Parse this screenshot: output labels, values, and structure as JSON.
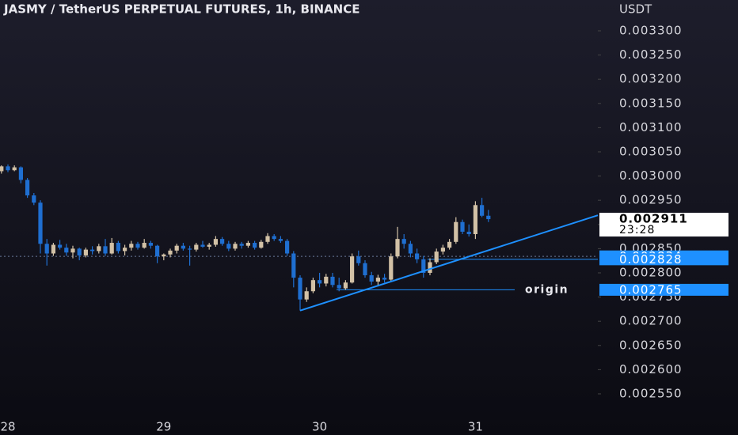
{
  "chart_data": {
    "type": "candlestick",
    "title": "JASMY / TetherUS PERPETUAL FUTURES, 1h, BINANCE",
    "y_axis_label": "USDT",
    "up_color": "#d2c1a6",
    "down_color": "#1f6fd1",
    "categories": [
      null,
      "28",
      null,
      null,
      null,
      null,
      null,
      null,
      null,
      null,
      null,
      null,
      null,
      null,
      null,
      null,
      null,
      null,
      null,
      null,
      null,
      null,
      null,
      null,
      null,
      "29",
      null,
      null,
      null,
      null,
      null,
      null,
      null,
      null,
      null,
      null,
      null,
      null,
      null,
      null,
      null,
      null,
      null,
      null,
      null,
      null,
      null,
      null,
      null,
      "30",
      null,
      null,
      null,
      null,
      null,
      null,
      null,
      null,
      null,
      null,
      null,
      null,
      null,
      null,
      null,
      null,
      null,
      null,
      null,
      null,
      null,
      null,
      null,
      "31",
      null,
      null
    ],
    "open": [
      0.00301,
      0.00302,
      0.003012,
      0.003018,
      0.002992,
      0.00296,
      0.002945,
      0.00286,
      0.00284,
      0.002858,
      0.002852,
      0.002842,
      0.00285,
      0.002836,
      0.002848,
      0.002845,
      0.002855,
      0.00284,
      0.002862,
      0.002845,
      0.002852,
      0.00286,
      0.002852,
      0.002862,
      0.002856,
      0.002834,
      0.002838,
      0.002846,
      0.002856,
      0.00285,
      0.002848,
      0.002858,
      0.002854,
      0.002858,
      0.00287,
      0.00286,
      0.00285,
      0.00286,
      0.002856,
      0.002862,
      0.002852,
      0.002864,
      0.002876,
      0.00287,
      0.002866,
      0.00284,
      0.00279,
      0.002745,
      0.002762,
      0.002785,
      0.002778,
      0.002792,
      0.002775,
      0.002768,
      0.00278,
      0.002834,
      0.00282,
      0.002795,
      0.002782,
      0.00279,
      0.002786,
      0.002834,
      0.00287,
      0.00286,
      0.00284,
      0.002828,
      0.0028,
      0.002822,
      0.002844,
      0.002852,
      0.002864,
      0.002905,
      0.002885,
      0.00288,
      0.00294,
      0.002918
    ],
    "high": [
      0.003022,
      0.003024,
      0.003022,
      0.00302,
      0.002996,
      0.002965,
      0.00295,
      0.00287,
      0.002862,
      0.002868,
      0.00286,
      0.002856,
      0.002852,
      0.002852,
      0.002855,
      0.00286,
      0.00287,
      0.002872,
      0.002866,
      0.002858,
      0.002866,
      0.002864,
      0.00287,
      0.002866,
      0.002858,
      0.00284,
      0.00285,
      0.00286,
      0.002862,
      0.002856,
      0.002862,
      0.002866,
      0.002862,
      0.002876,
      0.002874,
      0.002866,
      0.002864,
      0.002864,
      0.002866,
      0.002866,
      0.002868,
      0.002882,
      0.00288,
      0.002876,
      0.00287,
      0.002845,
      0.002795,
      0.00277,
      0.00279,
      0.0028,
      0.002798,
      0.0028,
      0.00279,
      0.002785,
      0.00284,
      0.002846,
      0.002826,
      0.002802,
      0.002796,
      0.002798,
      0.00284,
      0.002895,
      0.00288,
      0.002866,
      0.00285,
      0.002835,
      0.00283,
      0.00285,
      0.002858,
      0.00287,
      0.002915,
      0.00291,
      0.0029,
      0.002948,
      0.002955,
      0.00293
    ],
    "low": [
      0.003005,
      0.003008,
      0.00301,
      0.002985,
      0.002955,
      0.00294,
      0.00284,
      0.002815,
      0.002835,
      0.002848,
      0.002835,
      0.00283,
      0.002826,
      0.002832,
      0.002838,
      0.00284,
      0.002835,
      0.002838,
      0.00284,
      0.002836,
      0.002846,
      0.002848,
      0.00285,
      0.00285,
      0.00282,
      0.002826,
      0.002832,
      0.00284,
      0.002846,
      0.002815,
      0.002844,
      0.002852,
      0.002848,
      0.002854,
      0.002856,
      0.002845,
      0.002846,
      0.00285,
      0.002852,
      0.002848,
      0.00285,
      0.00286,
      0.002866,
      0.002862,
      0.002835,
      0.00277,
      0.002722,
      0.00274,
      0.002758,
      0.00277,
      0.002772,
      0.00277,
      0.002762,
      0.002765,
      0.002778,
      0.002815,
      0.00279,
      0.002775,
      0.002772,
      0.00278,
      0.002782,
      0.00283,
      0.00285,
      0.002832,
      0.00282,
      0.00279,
      0.002795,
      0.002818,
      0.002838,
      0.002848,
      0.00286,
      0.00288,
      0.002875,
      0.00287,
      0.002915,
      0.002905
    ],
    "close": [
      0.00302,
      0.003012,
      0.003018,
      0.002992,
      0.00296,
      0.002945,
      0.00286,
      0.00284,
      0.002858,
      0.002852,
      0.002842,
      0.00285,
      0.002836,
      0.002848,
      0.002845,
      0.002855,
      0.00284,
      0.002862,
      0.002845,
      0.002852,
      0.00286,
      0.002852,
      0.002862,
      0.002856,
      0.002834,
      0.002838,
      0.002846,
      0.002856,
      0.00285,
      0.002848,
      0.002858,
      0.002854,
      0.002858,
      0.00287,
      0.00286,
      0.00285,
      0.00286,
      0.002856,
      0.002862,
      0.002852,
      0.002864,
      0.002876,
      0.00287,
      0.002866,
      0.00284,
      0.00279,
      0.002745,
      0.002762,
      0.002785,
      0.002778,
      0.002792,
      0.002775,
      0.002768,
      0.00278,
      0.002834,
      0.00282,
      0.002795,
      0.002782,
      0.00279,
      0.002786,
      0.002834,
      0.00287,
      0.00286,
      0.00284,
      0.002828,
      0.0028,
      0.002822,
      0.002844,
      0.002852,
      0.002864,
      0.002905,
      0.002885,
      0.00288,
      0.00294,
      0.002918,
      0.002911
    ],
    "ylim": [
      0.002465,
      0.0033637
    ],
    "yticks": [
      {
        "value": 0.00255,
        "label": "0.002550"
      },
      {
        "value": 0.0026,
        "label": "0.002600"
      },
      {
        "value": 0.00265,
        "label": "0.002650"
      },
      {
        "value": 0.0027,
        "label": "0.002700"
      },
      {
        "value": 0.00275,
        "label": "0.002750"
      },
      {
        "value": 0.0028,
        "label": "0.002800"
      },
      {
        "value": 0.00285,
        "label": "0.002850"
      },
      {
        "value": 0.0029,
        "label": "0.002900"
      },
      {
        "value": 0.00295,
        "label": "0.002950"
      },
      {
        "value": 0.003,
        "label": "0.003000"
      },
      {
        "value": 0.00305,
        "label": "0.003050"
      },
      {
        "value": 0.0031,
        "label": "0.003100"
      },
      {
        "value": 0.00315,
        "label": "0.003150"
      },
      {
        "value": 0.0032,
        "label": "0.003200"
      },
      {
        "value": 0.00325,
        "label": "0.003250"
      },
      {
        "value": 0.0033,
        "label": "0.003300"
      }
    ],
    "price_lines": [
      {
        "value": 0.002834,
        "label": "0.002834",
        "style": "dotted"
      },
      {
        "value": 0.002828,
        "label": "0.002828",
        "style": "solid"
      },
      {
        "value": 0.002765,
        "label": "0.002765",
        "style": "solid",
        "name": "origin"
      }
    ],
    "last_price": {
      "value": 0.002911,
      "label": "0.002911"
    },
    "countdown": "23:28",
    "trendline": [
      0.002722,
      0.002919
    ]
  }
}
